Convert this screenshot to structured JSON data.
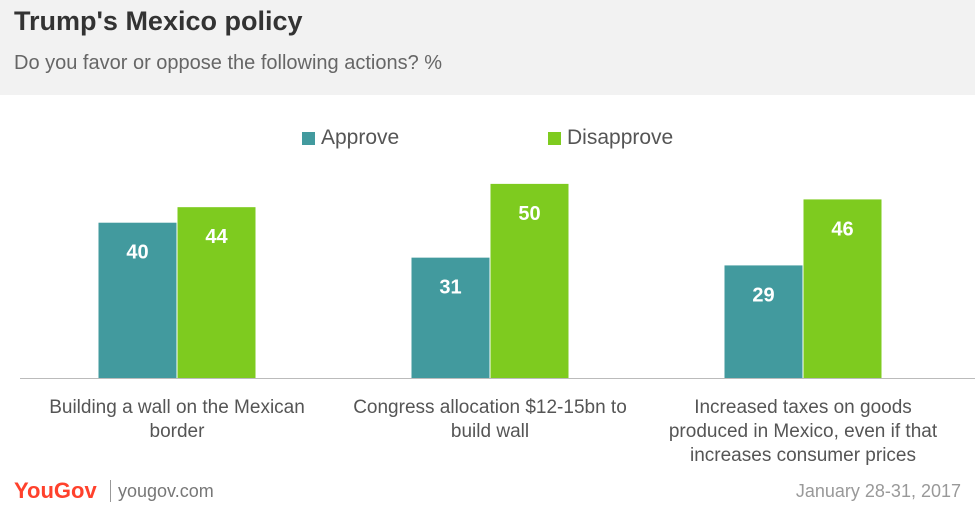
{
  "header": {
    "title": "Trump's Mexico policy",
    "subtitle": "Do you favor or oppose the following actions? %"
  },
  "chart_data": {
    "type": "bar",
    "title": "Trump's Mexico policy",
    "subtitle": "Do you favor or oppose the following actions? %",
    "categories": [
      "Building a wall on the Mexican border",
      "Congress allocation $12-15bn to build wall",
      "Increased taxes on goods produced in Mexico, even if that increases consumer prices"
    ],
    "category_lines": [
      [
        "Building a wall on the Mexican",
        "border"
      ],
      [
        "Congress allocation $12-15bn to",
        "build wall"
      ],
      [
        "Increased taxes on goods",
        "produced in Mexico, even if that",
        "increases consumer prices"
      ]
    ],
    "series": [
      {
        "name": "Approve",
        "values": [
          40,
          31,
          29
        ],
        "color": "#429a9e"
      },
      {
        "name": "Disapprove",
        "values": [
          44,
          50,
          46
        ],
        "color": "#7ecb1f"
      }
    ],
    "ylim": [
      0,
      51
    ],
    "legend_position": "top-center",
    "grid": false,
    "data_labels": true
  },
  "footer": {
    "logo_you": "You",
    "logo_gov": "Gov",
    "site": "yougov.com",
    "date": "January 28-31, 2017"
  }
}
